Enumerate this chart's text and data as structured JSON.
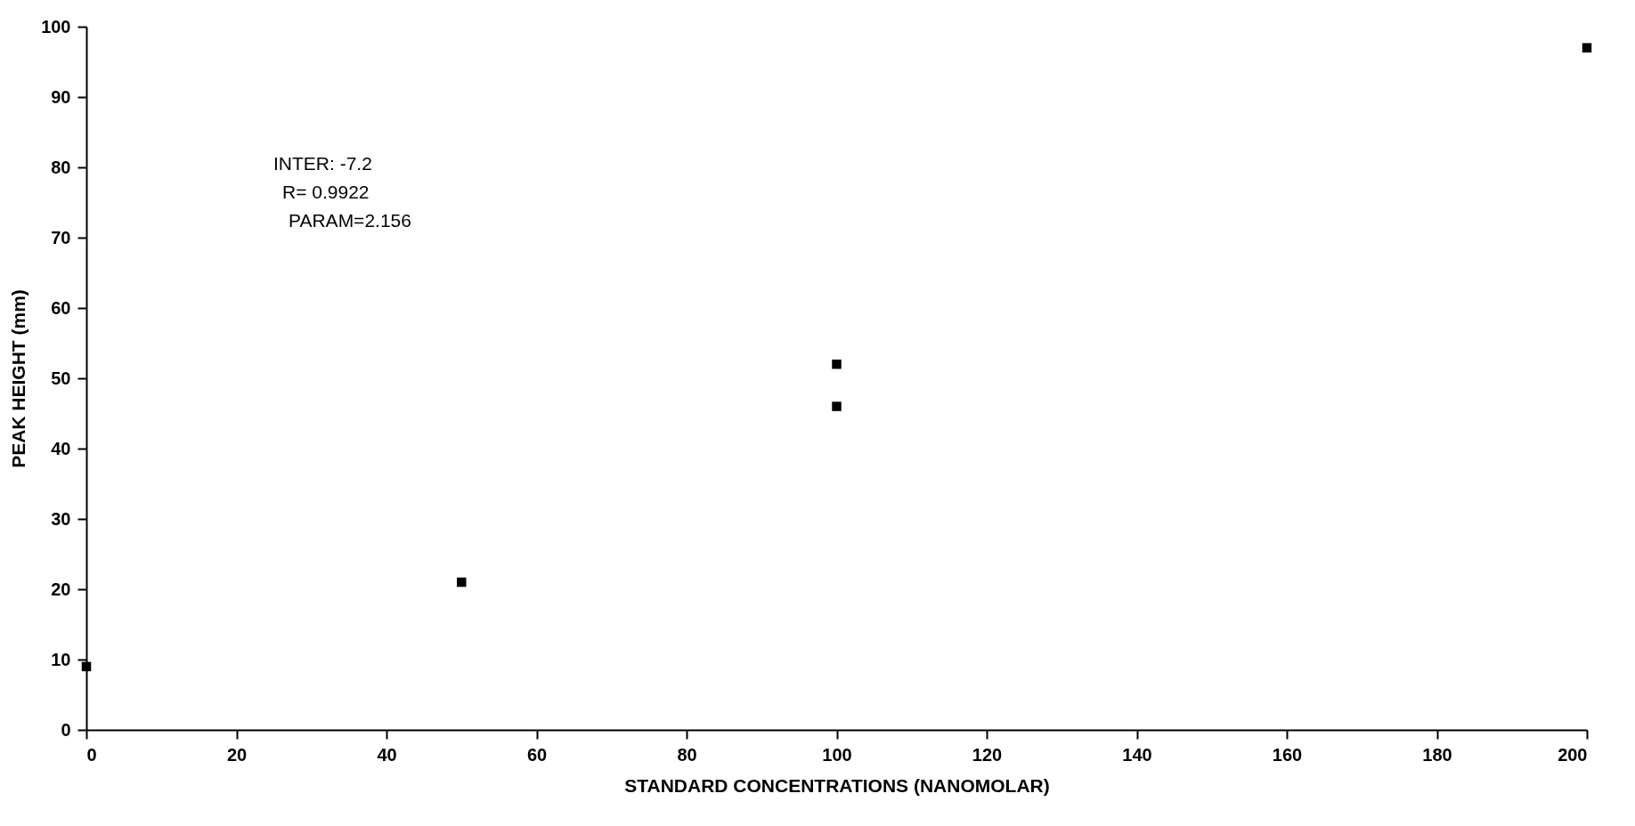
{
  "chart_data": {
    "type": "scatter",
    "xlabel": "STANDARD CONCENTRATIONS (NANOMOLAR)",
    "ylabel": "PEAK HEIGHT (mm)",
    "x": [
      0,
      50,
      100,
      100,
      200
    ],
    "series": [
      {
        "color": "#000000",
        "values": [
          9,
          21,
          52,
          46,
          97
        ]
      }
    ],
    "xlim": [
      0,
      200
    ],
    "xticks": [
      0,
      20,
      40,
      60,
      80,
      100,
      120,
      140,
      160,
      180,
      200
    ],
    "ylim": [
      0,
      100
    ],
    "yticks": [
      0,
      10,
      20,
      30,
      40,
      50,
      60,
      70,
      80,
      90,
      100
    ],
    "annotations": [
      "INTER: -7.2",
      "R= 0.9922",
      "PARAM=2.156"
    ],
    "marker": "square",
    "grid": false
  }
}
